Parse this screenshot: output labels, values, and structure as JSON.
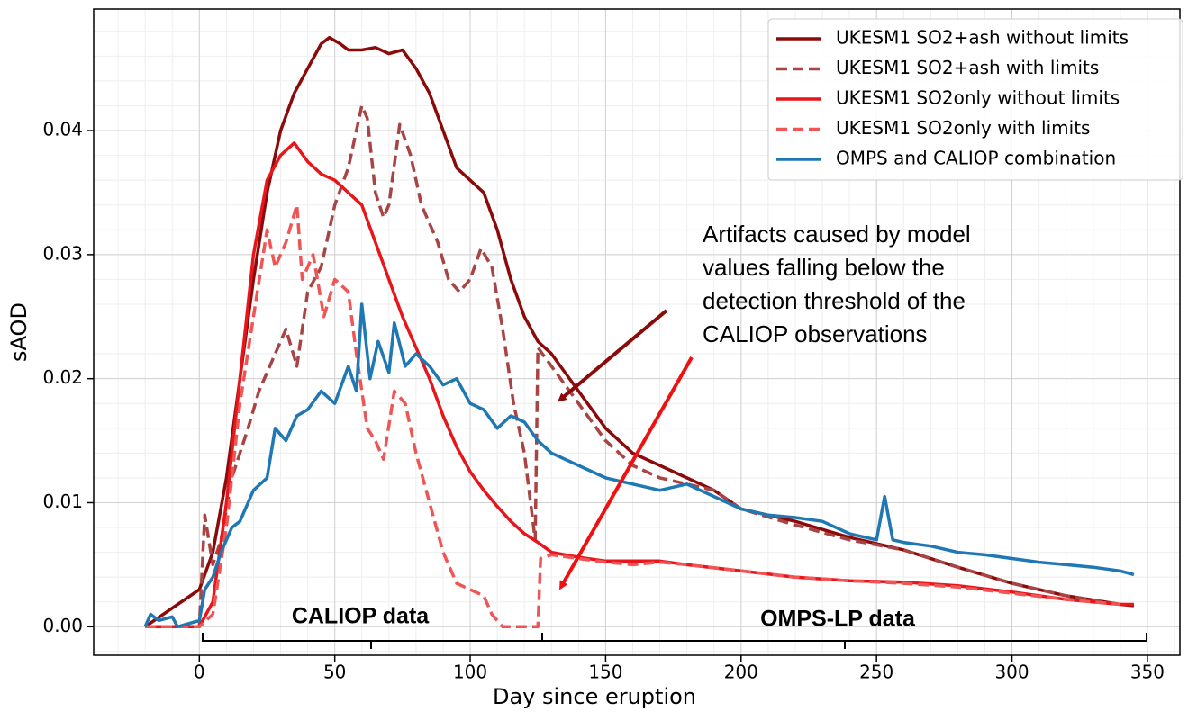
{
  "chart_data": {
    "type": "line",
    "xlabel": "Day since eruption",
    "ylabel": "sAOD",
    "xlim": [
      -39,
      362
    ],
    "ylim": [
      -0.0023,
      0.0498
    ],
    "xticks": [
      0,
      50,
      100,
      150,
      200,
      250,
      300,
      350
    ],
    "yticks": [
      {
        "value": 0,
        "label": "0.00"
      },
      {
        "value": 0.01,
        "label": "0.01"
      },
      {
        "value": 0.02,
        "label": "0.02"
      },
      {
        "value": 0.03,
        "label": "0.03"
      },
      {
        "value": 0.04,
        "label": "0.04"
      }
    ],
    "grid": true,
    "minor_grid": true,
    "legend": "upper right",
    "annotation": [
      "Artifacts caused by model",
      "values falling below the",
      "detection threshold of the",
      "CALIOP observations"
    ],
    "regions": [
      "CALIOP data",
      "OMPS-LP data"
    ],
    "series": [
      {
        "name": "UKESM1 SO2+ash without limits",
        "color": "#8b0a0a",
        "style": "solid",
        "x": [
          -20,
          0,
          5,
          10,
          15,
          20,
          25,
          30,
          35,
          40,
          45,
          48,
          52,
          55,
          60,
          65,
          70,
          75,
          80,
          85,
          90,
          95,
          100,
          105,
          110,
          115,
          120,
          125,
          130,
          140,
          150,
          160,
          170,
          180,
          190,
          200,
          220,
          240,
          260,
          280,
          300,
          320,
          340,
          345
        ],
        "values": [
          0,
          0.003,
          0.006,
          0.012,
          0.02,
          0.028,
          0.035,
          0.04,
          0.043,
          0.045,
          0.047,
          0.0475,
          0.047,
          0.0465,
          0.0465,
          0.0467,
          0.0462,
          0.0465,
          0.045,
          0.043,
          0.04,
          0.037,
          0.036,
          0.035,
          0.032,
          0.028,
          0.025,
          0.023,
          0.022,
          0.019,
          0.016,
          0.014,
          0.013,
          0.012,
          0.011,
          0.0095,
          0.0085,
          0.0072,
          0.0062,
          0.0048,
          0.0035,
          0.0025,
          0.0018,
          0.0017
        ]
      },
      {
        "name": "UKESM1 SO2+ash with limits",
        "color": "#a84444",
        "style": "dashed",
        "x": [
          -20,
          0,
          2,
          5,
          8,
          12,
          18,
          22,
          28,
          32,
          36,
          40,
          45,
          50,
          55,
          60,
          62,
          65,
          68,
          70,
          74,
          78,
          82,
          88,
          92,
          96,
          100,
          104,
          108,
          112,
          116,
          120,
          124,
          125,
          130,
          140,
          150,
          160,
          170,
          180,
          190,
          200,
          220,
          240,
          260,
          280,
          300,
          320,
          340
        ],
        "values": [
          0,
          0,
          0.009,
          0.005,
          0.007,
          0.012,
          0.016,
          0.019,
          0.022,
          0.024,
          0.021,
          0.027,
          0.029,
          0.034,
          0.037,
          0.042,
          0.041,
          0.035,
          0.033,
          0.034,
          0.0405,
          0.038,
          0.034,
          0.031,
          0.028,
          0.027,
          0.028,
          0.0305,
          0.029,
          0.024,
          0.018,
          0.014,
          0.007,
          0.0225,
          0.021,
          0.018,
          0.015,
          0.013,
          0.012,
          0.0115,
          0.011,
          0.0095,
          0.0082,
          0.007,
          0.0062,
          0.0048,
          0.0035,
          0.0025,
          0.0018
        ]
      },
      {
        "name": "UKESM1 SO2only without limits",
        "color": "#e8151b",
        "style": "solid",
        "x": [
          -20,
          0,
          5,
          10,
          15,
          20,
          25,
          30,
          35,
          40,
          45,
          50,
          55,
          60,
          65,
          70,
          75,
          80,
          85,
          90,
          95,
          100,
          105,
          110,
          115,
          120,
          125,
          130,
          140,
          150,
          170,
          180,
          200,
          220,
          240,
          260,
          280,
          300,
          320,
          340,
          345
        ],
        "values": [
          0,
          0,
          0.002,
          0.01,
          0.02,
          0.03,
          0.036,
          0.038,
          0.039,
          0.0375,
          0.0365,
          0.036,
          0.035,
          0.034,
          0.031,
          0.028,
          0.025,
          0.0225,
          0.02,
          0.017,
          0.0145,
          0.0125,
          0.011,
          0.0097,
          0.0085,
          0.0075,
          0.0068,
          0.006,
          0.0056,
          0.0053,
          0.0053,
          0.005,
          0.0045,
          0.004,
          0.0037,
          0.0036,
          0.0033,
          0.0028,
          0.0022,
          0.0018,
          0.0018
        ]
      },
      {
        "name": "UKESM1 SO2only with limits",
        "color": "#f05555",
        "style": "dashed",
        "x": [
          -20,
          0,
          5,
          10,
          15,
          20,
          25,
          28,
          32,
          36,
          38,
          42,
          46,
          50,
          55,
          58,
          62,
          65,
          68,
          72,
          76,
          80,
          85,
          90,
          95,
          100,
          105,
          108,
          112,
          120,
          125,
          126,
          130,
          140,
          150,
          160,
          170,
          180,
          200,
          220,
          240,
          260,
          280,
          300,
          320,
          340
        ],
        "values": [
          0,
          0,
          0.001,
          0.008,
          0.018,
          0.025,
          0.032,
          0.029,
          0.031,
          0.034,
          0.028,
          0.03,
          0.025,
          0.028,
          0.027,
          0.022,
          0.016,
          0.015,
          0.0135,
          0.019,
          0.018,
          0.014,
          0.01,
          0.006,
          0.0035,
          0.003,
          0.0025,
          0.001,
          0,
          0,
          0,
          0.0055,
          0.0058,
          0.0055,
          0.0052,
          0.005,
          0.0052,
          0.005,
          0.0045,
          0.004,
          0.0037,
          0.0035,
          0.0032,
          0.0027,
          0.0022,
          0.0018
        ]
      },
      {
        "name": "OMPS and CALIOP combination",
        "color": "#1f77b4",
        "style": "solid",
        "x": [
          -20,
          -18,
          -15,
          -10,
          -8,
          0,
          2,
          5,
          8,
          12,
          15,
          20,
          25,
          28,
          32,
          36,
          40,
          45,
          50,
          55,
          58,
          60,
          63,
          66,
          70,
          72,
          76,
          80,
          85,
          90,
          95,
          100,
          105,
          110,
          115,
          120,
          125,
          130,
          140,
          150,
          160,
          170,
          180,
          190,
          200,
          210,
          220,
          230,
          240,
          250,
          253,
          256,
          260,
          270,
          280,
          290,
          300,
          310,
          320,
          330,
          340,
          345
        ],
        "values": [
          0,
          0.001,
          0.0005,
          0.0008,
          0,
          0.0005,
          0.003,
          0.004,
          0.006,
          0.008,
          0.0085,
          0.011,
          0.012,
          0.016,
          0.015,
          0.017,
          0.0175,
          0.019,
          0.018,
          0.021,
          0.019,
          0.026,
          0.02,
          0.023,
          0.0205,
          0.0245,
          0.021,
          0.022,
          0.021,
          0.0195,
          0.02,
          0.018,
          0.0175,
          0.016,
          0.017,
          0.0165,
          0.015,
          0.014,
          0.013,
          0.012,
          0.0115,
          0.011,
          0.0115,
          0.0105,
          0.0095,
          0.009,
          0.0088,
          0.0085,
          0.0075,
          0.007,
          0.0105,
          0.007,
          0.0068,
          0.0065,
          0.006,
          0.0058,
          0.0055,
          0.0052,
          0.005,
          0.0048,
          0.0045,
          0.0042
        ]
      }
    ]
  }
}
